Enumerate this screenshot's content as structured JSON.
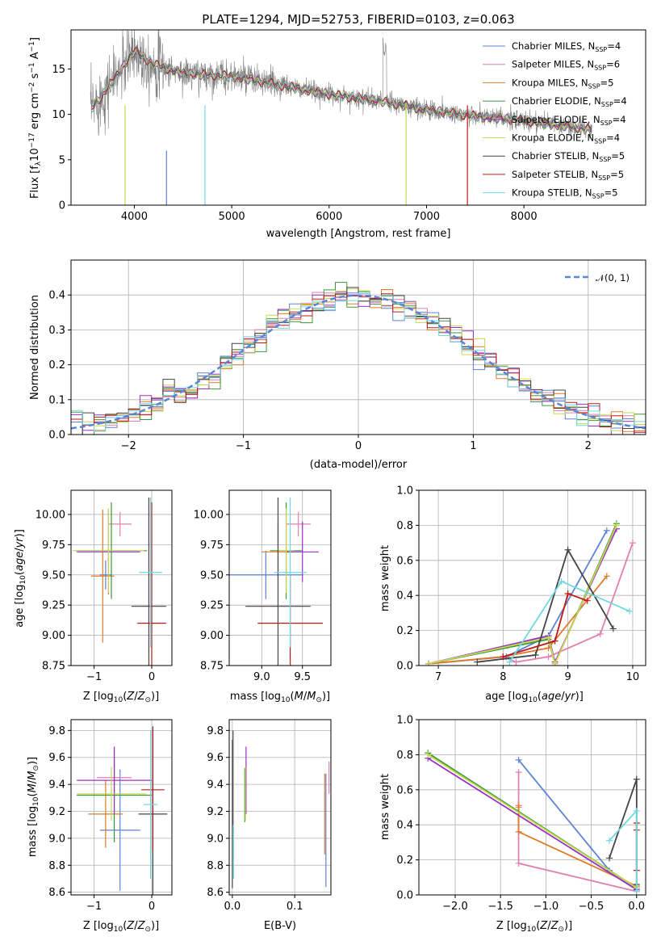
{
  "title": "PLATE=1294, MJD=52753, FIBERID=0103, z=0.063",
  "colors": {
    "chabrier_miles": "#5b84d6",
    "salpeter_miles": "#e07fb0",
    "kroupa_miles": "#e07a28",
    "chabrier_elodie": "#3a9a3a",
    "salpeter_elodie": "#9b30c8",
    "kroupa_elodie": "#c7d84e",
    "chabrier_stelib": "#444444",
    "salpeter_stelib": "#c01818",
    "kroupa_stelib": "#6fd8e0",
    "data": "#808080",
    "normal": "#5b84d6"
  },
  "chart_data": [
    {
      "type": "line",
      "title": "PLATE=1294, MJD=52753, FIBERID=0103, z=0.063",
      "xlabel": "wavelength [Angstrom, rest frame]",
      "ylabel": "Flux [f_λ 10^-17 erg cm^-2 s^-1 A^-1]",
      "xlim": [
        3350,
        9250
      ],
      "ylim": [
        0,
        19.3
      ],
      "xticks": [
        "4000",
        "5000",
        "6000",
        "7000",
        "8000"
      ],
      "yticks": [
        "0",
        "5",
        "10",
        "15"
      ],
      "legend_position": "top-right",
      "series": [
        {
          "name": "Chabrier MILES, N_SSP=4",
          "key": "chabrier_miles"
        },
        {
          "name": "Salpeter MILES, N_SSP=6",
          "key": "salpeter_miles"
        },
        {
          "name": "Kroupa MILES, N_SSP=5",
          "key": "kroupa_miles"
        },
        {
          "name": "Chabrier ELODIE, N_SSP=4",
          "key": "chabrier_elodie"
        },
        {
          "name": "Salpeter ELODIE, N_SSP=4",
          "key": "salpeter_elodie"
        },
        {
          "name": "Kroupa ELODIE, N_SSP=4",
          "key": "kroupa_elodie"
        },
        {
          "name": "Chabrier STELIB, N_SSP=5",
          "key": "chabrier_stelib"
        },
        {
          "name": "Salpeter STELIB, N_SSP=5",
          "key": "salpeter_stelib"
        },
        {
          "name": "Kroupa STELIB, N_SSP=5",
          "key": "kroupa_stelib"
        }
      ],
      "continuum": {
        "x": [
          3550,
          3700,
          3900,
          4000,
          4200,
          4500,
          5000,
          5500,
          6000,
          6500,
          7000,
          7500,
          8000,
          8500,
          8700
        ],
        "y": [
          10.5,
          12.5,
          15.5,
          17.0,
          15.5,
          14.5,
          14.2,
          13.2,
          12.2,
          11.5,
          10.5,
          9.8,
          9.3,
          8.6,
          8.3
        ]
      }
    },
    {
      "type": "line",
      "xlabel": "(data-model)/error",
      "ylabel": "Normed distribution",
      "xlim": [
        -2.5,
        2.5
      ],
      "ylim": [
        0,
        0.5
      ],
      "xticks": [
        "−2",
        "−1",
        "0",
        "1",
        "2"
      ],
      "yticks": [
        "0.0",
        "0.1",
        "0.2",
        "0.3",
        "0.4"
      ],
      "grid": true,
      "legend_position": "top-right",
      "legend": "𝒩(0, 1)"
    },
    {
      "type": "scatter",
      "xlabel": "Z [log10(Z/Z⊙)]",
      "ylabel": "age  [log10(age/yr)]",
      "xlim": [
        -1.4,
        0.35
      ],
      "ylim": [
        8.75,
        10.2
      ],
      "xticks": [
        "−1",
        "0"
      ],
      "yticks": [
        "8.75",
        "9.00",
        "9.25",
        "9.50",
        "9.75",
        "10.00"
      ],
      "points": [
        {
          "key": "chabrier_miles",
          "x": -0.8,
          "xerr": 0.1,
          "y": 9.5,
          "yerr": 0.12
        },
        {
          "key": "salpeter_miles",
          "x": -0.55,
          "xerr": 0.2,
          "y": 9.92,
          "yerr": 0.1
        },
        {
          "key": "kroupa_miles",
          "x": -0.85,
          "xerr": 0.2,
          "y": 9.49,
          "yerr": 0.55
        },
        {
          "key": "chabrier_elodie",
          "x": -0.7,
          "xerr": 0.62,
          "y": 9.7,
          "yerr": 0.4
        },
        {
          "key": "salpeter_elodie",
          "x": -0.75,
          "xerr": 0.55,
          "y": 9.69,
          "yerr": 0.35
        },
        {
          "key": "kroupa_elodie",
          "x": -0.75,
          "xerr": 0.62,
          "y": 9.7,
          "yerr": 0.35
        },
        {
          "key": "chabrier_stelib",
          "x": -0.05,
          "xerr": 0.3,
          "y": 9.24,
          "yerr": 0.9
        },
        {
          "key": "salpeter_stelib",
          "x": 0.0,
          "xerr": 0.25,
          "y": 9.1,
          "yerr": 1.0
        },
        {
          "key": "kroupa_stelib",
          "x": -0.02,
          "xerr": 0.2,
          "y": 9.52,
          "yerr": 0.62
        }
      ]
    },
    {
      "type": "scatter",
      "xlabel": "mass [log10(M/M⊙)]",
      "ylabel": "",
      "xlim": [
        8.6,
        9.85
      ],
      "ylim": [
        8.75,
        10.2
      ],
      "xticks": [
        "9.0",
        "9.5"
      ],
      "yticks": [
        "8.75",
        "9.00",
        "9.25",
        "9.50",
        "9.75",
        "10.00"
      ],
      "points": [
        {
          "key": "chabrier_miles",
          "x": 9.05,
          "xerr": 0.45,
          "y": 9.5,
          "yerr": 0.2
        },
        {
          "key": "salpeter_miles",
          "x": 9.45,
          "xerr": 0.15,
          "y": 9.92,
          "yerr": 0.1
        },
        {
          "key": "kroupa_miles",
          "x": 9.2,
          "xerr": 0.2,
          "y": 9.69,
          "yerr": 0.25
        },
        {
          "key": "chabrier_elodie",
          "x": 9.3,
          "xerr": 0.2,
          "y": 9.7,
          "yerr": 0.4
        },
        {
          "key": "salpeter_elodie",
          "x": 9.5,
          "xerr": 0.2,
          "y": 9.69,
          "yerr": 0.25
        },
        {
          "key": "kroupa_elodie",
          "x": 9.3,
          "xerr": 0.1,
          "y": 9.7,
          "yerr": 0.35
        },
        {
          "key": "chabrier_stelib",
          "x": 9.2,
          "xerr": 0.4,
          "y": 9.24,
          "yerr": 0.9
        },
        {
          "key": "salpeter_stelib",
          "x": 9.35,
          "xerr": 0.4,
          "y": 9.1,
          "yerr": 0.4
        },
        {
          "key": "kroupa_stelib",
          "x": 9.35,
          "xerr": 0.2,
          "y": 9.52,
          "yerr": 0.62
        }
      ]
    },
    {
      "type": "line",
      "xlabel": "age  [log10(age/yr)]",
      "ylabel": "mass weight",
      "xlim": [
        6.7,
        10.2
      ],
      "ylim": [
        0,
        1.0
      ],
      "xticks": [
        "7",
        "8",
        "9",
        "10"
      ],
      "yticks": [
        "0.0",
        "0.2",
        "0.4",
        "0.6",
        "0.8",
        "1.0"
      ],
      "grid": true,
      "series": [
        {
          "key": "chabrier_miles",
          "x": [
            6.85,
            8.05,
            8.7,
            9.6
          ],
          "y": [
            0.01,
            0.05,
            0.17,
            0.77
          ]
        },
        {
          "key": "salpeter_miles",
          "x": [
            6.85,
            8.0,
            8.2,
            8.7,
            9.5,
            10.0
          ],
          "y": [
            0.01,
            0.05,
            0.02,
            0.05,
            0.18,
            0.7
          ]
        },
        {
          "key": "kroupa_miles",
          "x": [
            6.85,
            8.0,
            8.7,
            9.6
          ],
          "y": [
            0.01,
            0.05,
            0.1,
            0.51
          ]
        },
        {
          "key": "chabrier_elodie",
          "x": [
            6.85,
            8.7,
            8.8,
            9.75
          ],
          "y": [
            0.01,
            0.15,
            0.01,
            0.81
          ]
        },
        {
          "key": "salpeter_elodie",
          "x": [
            6.85,
            8.7,
            8.8,
            9.75
          ],
          "y": [
            0.01,
            0.17,
            0.02,
            0.78
          ]
        },
        {
          "key": "kroupa_elodie",
          "x": [
            6.85,
            8.7,
            8.8,
            9.75
          ],
          "y": [
            0.01,
            0.16,
            0.01,
            0.8
          ]
        },
        {
          "key": "chabrier_stelib",
          "x": [
            7.6,
            8.5,
            9.0,
            9.7
          ],
          "y": [
            0.02,
            0.06,
            0.66,
            0.21
          ]
        },
        {
          "key": "salpeter_stelib",
          "x": [
            8.0,
            8.8,
            9.0,
            9.3
          ],
          "y": [
            0.05,
            0.14,
            0.41,
            0.37
          ]
        },
        {
          "key": "kroupa_stelib",
          "x": [
            8.1,
            8.9,
            9.95
          ],
          "y": [
            0.02,
            0.48,
            0.31
          ]
        }
      ]
    },
    {
      "type": "scatter",
      "xlabel": "Z [log10(Z/Z⊙)]",
      "ylabel": "mass [log10(M/M⊙)]",
      "xlim": [
        -1.4,
        0.35
      ],
      "ylim": [
        8.58,
        9.88
      ],
      "xticks": [
        "−1",
        "0"
      ],
      "yticks": [
        "8.6",
        "8.8",
        "9.0",
        "9.2",
        "9.4",
        "9.6",
        "9.8"
      ],
      "points": [
        {
          "key": "chabrier_miles",
          "x": -0.55,
          "xerr": 0.35,
          "y": 9.06,
          "yerr": 0.45
        },
        {
          "key": "salpeter_miles",
          "x": -0.65,
          "xerr": 0.3,
          "y": 9.45,
          "yerr": 0.15
        },
        {
          "key": "kroupa_miles",
          "x": -0.8,
          "xerr": 0.3,
          "y": 9.18,
          "yerr": 0.25
        },
        {
          "key": "chabrier_elodie",
          "x": -0.65,
          "xerr": 0.65,
          "y": 9.32,
          "yerr": 0.35
        },
        {
          "key": "salpeter_elodie",
          "x": -0.65,
          "xerr": 0.65,
          "y": 9.43,
          "yerr": 0.25
        },
        {
          "key": "kroupa_elodie",
          "x": -0.7,
          "xerr": 0.6,
          "y": 9.33,
          "yerr": 0.2
        },
        {
          "key": "chabrier_stelib",
          "x": 0.02,
          "xerr": 0.25,
          "y": 9.18,
          "yerr": 0.65
        },
        {
          "key": "salpeter_stelib",
          "x": 0.02,
          "xerr": 0.2,
          "y": 9.36,
          "yerr": 0.45
        },
        {
          "key": "kroupa_stelib",
          "x": -0.02,
          "xerr": 0.12,
          "y": 9.25,
          "yerr": 0.55
        }
      ]
    },
    {
      "type": "scatter",
      "xlabel": "E(B-V)",
      "ylabel": "",
      "xlim": [
        -0.005,
        0.158
      ],
      "ylim": [
        8.58,
        9.88
      ],
      "xticks": [
        "0.0",
        "0.1"
      ],
      "yticks": [
        "8.6",
        "8.8",
        "9.0",
        "9.2",
        "9.4",
        "9.6",
        "9.8"
      ],
      "points": [
        {
          "key": "chabrier_miles",
          "x": 0.15,
          "y": 9.06,
          "yerr": 0.42
        },
        {
          "key": "salpeter_miles",
          "x": 0.155,
          "y": 9.45,
          "yerr": 0.12
        },
        {
          "key": "kroupa_miles",
          "x": 0.148,
          "y": 9.18,
          "yerr": 0.3
        },
        {
          "key": "chabrier_elodie",
          "x": 0.02,
          "y": 9.32,
          "yerr": 0.2
        },
        {
          "key": "salpeter_elodie",
          "x": 0.022,
          "y": 9.43,
          "yerr": 0.25
        },
        {
          "key": "kroupa_elodie",
          "x": 0.021,
          "y": 9.33,
          "yerr": 0.2
        },
        {
          "key": "chabrier_stelib",
          "x": 0.0,
          "y": 9.18,
          "yerr": 0.55
        },
        {
          "key": "salpeter_stelib",
          "x": 0.001,
          "y": 9.45,
          "yerr": 0.35
        },
        {
          "key": "kroupa_stelib",
          "x": 0.002,
          "y": 9.25,
          "yerr": 0.55
        }
      ]
    },
    {
      "type": "line",
      "xlabel": "Z [log10(Z/Z⊙)]",
      "ylabel": "mass weight",
      "xlim": [
        -2.4,
        0.1
      ],
      "ylim": [
        0,
        1.0
      ],
      "xticks": [
        "−2.0",
        "−1.5",
        "−1.0",
        "−0.5",
        "0.0"
      ],
      "yticks": [
        "0.0",
        "0.2",
        "0.4",
        "0.6",
        "0.8",
        "1.0"
      ],
      "grid": true,
      "series": [
        {
          "key": "chabrier_miles",
          "x": [
            -1.3,
            -0.3,
            0.0
          ],
          "y": [
            0.77,
            0.14,
            0.03
          ]
        },
        {
          "key": "salpeter_miles",
          "x": [
            -1.3,
            -1.3,
            -1.3,
            0.0
          ],
          "y": [
            0.7,
            0.5,
            0.18,
            0.02
          ]
        },
        {
          "key": "kroupa_miles",
          "x": [
            -1.3,
            -1.3,
            0.0
          ],
          "y": [
            0.51,
            0.36,
            0.05
          ]
        },
        {
          "key": "chabrier_elodie",
          "x": [
            -2.3,
            0.0
          ],
          "y": [
            0.81,
            0.04
          ]
        },
        {
          "key": "salpeter_elodie",
          "x": [
            -2.3,
            0.0
          ],
          "y": [
            0.78,
            0.03
          ]
        },
        {
          "key": "kroupa_elodie",
          "x": [
            -2.3,
            0.0
          ],
          "y": [
            0.8,
            0.04
          ]
        },
        {
          "key": "chabrier_stelib",
          "x": [
            -0.3,
            0.0,
            0.0
          ],
          "y": [
            0.21,
            0.66,
            0.06
          ]
        },
        {
          "key": "salpeter_stelib",
          "x": [
            0.0,
            0.0,
            0.0
          ],
          "y": [
            0.41,
            0.37,
            0.14
          ]
        },
        {
          "key": "kroupa_stelib",
          "x": [
            -0.3,
            0.0,
            0.0
          ],
          "y": [
            0.31,
            0.48,
            0.02
          ]
        }
      ]
    }
  ]
}
